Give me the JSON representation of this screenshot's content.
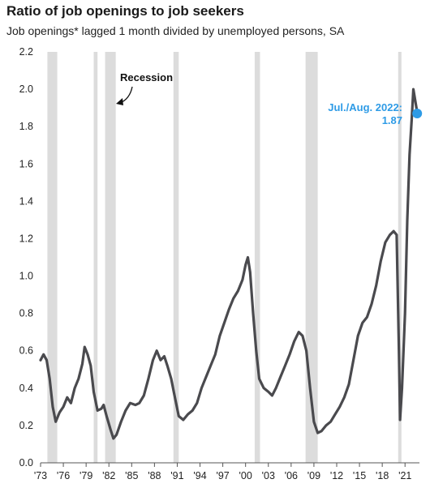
{
  "title": "Ratio of job openings to job seekers",
  "subtitle": "Job openings* lagged 1 month divided by unemployed persons, SA",
  "chart_data": {
    "type": "line",
    "colors": {
      "line": "#4a4a4e",
      "recession": "#dcdcdc",
      "highlight": "#2e9be6"
    },
    "xlim": [
      1973,
      2022.9
    ],
    "ylim": [
      0,
      2.2
    ],
    "y_ticks": [
      "0.0",
      "0.2",
      "0.4",
      "0.6",
      "0.8",
      "1.0",
      "1.2",
      "1.4",
      "1.6",
      "1.8",
      "2.0",
      "2.2"
    ],
    "x_ticks": [
      "'73",
      "'76",
      "'79",
      "'82",
      "'85",
      "'88",
      "'91",
      "'94",
      "'97",
      "'00",
      "'03",
      "'06",
      "'09",
      "'12",
      "'15",
      "'18",
      "'21"
    ],
    "grid": false,
    "recessions": [
      {
        "start": 1973.9,
        "end": 1975.2
      },
      {
        "start": 1980.0,
        "end": 1980.5
      },
      {
        "start": 1981.5,
        "end": 1982.9
      },
      {
        "start": 1990.5,
        "end": 1991.2
      },
      {
        "start": 2001.2,
        "end": 2001.9
      },
      {
        "start": 2007.9,
        "end": 2009.5
      },
      {
        "start": 2020.1,
        "end": 2020.4
      }
    ],
    "recession_label": "Recession",
    "series": [
      {
        "values": [
          [
            1973.0,
            0.55
          ],
          [
            1973.4,
            0.58
          ],
          [
            1973.8,
            0.55
          ],
          [
            1974.2,
            0.45
          ],
          [
            1974.6,
            0.3
          ],
          [
            1975.0,
            0.22
          ],
          [
            1975.5,
            0.27
          ],
          [
            1976.0,
            0.3
          ],
          [
            1976.5,
            0.35
          ],
          [
            1977.0,
            0.32
          ],
          [
            1977.5,
            0.4
          ],
          [
            1978.0,
            0.45
          ],
          [
            1978.5,
            0.53
          ],
          [
            1978.8,
            0.62
          ],
          [
            1979.2,
            0.58
          ],
          [
            1979.6,
            0.52
          ],
          [
            1980.0,
            0.38
          ],
          [
            1980.5,
            0.28
          ],
          [
            1981.0,
            0.29
          ],
          [
            1981.3,
            0.31
          ],
          [
            1981.7,
            0.25
          ],
          [
            1982.2,
            0.18
          ],
          [
            1982.6,
            0.13
          ],
          [
            1983.0,
            0.15
          ],
          [
            1983.6,
            0.22
          ],
          [
            1984.2,
            0.28
          ],
          [
            1984.8,
            0.32
          ],
          [
            1985.5,
            0.31
          ],
          [
            1986.0,
            0.32
          ],
          [
            1986.6,
            0.36
          ],
          [
            1987.2,
            0.45
          ],
          [
            1987.8,
            0.55
          ],
          [
            1988.3,
            0.6
          ],
          [
            1988.8,
            0.55
          ],
          [
            1989.3,
            0.57
          ],
          [
            1989.7,
            0.52
          ],
          [
            1990.2,
            0.45
          ],
          [
            1990.7,
            0.35
          ],
          [
            1991.2,
            0.25
          ],
          [
            1991.8,
            0.23
          ],
          [
            1992.4,
            0.26
          ],
          [
            1993.0,
            0.28
          ],
          [
            1993.6,
            0.32
          ],
          [
            1994.2,
            0.4
          ],
          [
            1994.8,
            0.46
          ],
          [
            1995.4,
            0.52
          ],
          [
            1996.0,
            0.58
          ],
          [
            1996.6,
            0.68
          ],
          [
            1997.2,
            0.75
          ],
          [
            1997.8,
            0.82
          ],
          [
            1998.4,
            0.88
          ],
          [
            1999.0,
            0.92
          ],
          [
            1999.6,
            0.98
          ],
          [
            2000.0,
            1.06
          ],
          [
            2000.3,
            1.1
          ],
          [
            2000.6,
            1.02
          ],
          [
            2001.0,
            0.8
          ],
          [
            2001.4,
            0.6
          ],
          [
            2001.8,
            0.45
          ],
          [
            2002.4,
            0.4
          ],
          [
            2003.0,
            0.38
          ],
          [
            2003.5,
            0.36
          ],
          [
            2004.0,
            0.4
          ],
          [
            2004.6,
            0.46
          ],
          [
            2005.2,
            0.52
          ],
          [
            2005.8,
            0.58
          ],
          [
            2006.4,
            0.65
          ],
          [
            2007.0,
            0.7
          ],
          [
            2007.5,
            0.68
          ],
          [
            2008.0,
            0.6
          ],
          [
            2008.5,
            0.4
          ],
          [
            2009.0,
            0.22
          ],
          [
            2009.5,
            0.16
          ],
          [
            2010.0,
            0.17
          ],
          [
            2010.6,
            0.2
          ],
          [
            2011.2,
            0.22
          ],
          [
            2011.8,
            0.26
          ],
          [
            2012.4,
            0.3
          ],
          [
            2013.0,
            0.35
          ],
          [
            2013.6,
            0.42
          ],
          [
            2014.2,
            0.55
          ],
          [
            2014.8,
            0.68
          ],
          [
            2015.4,
            0.75
          ],
          [
            2016.0,
            0.78
          ],
          [
            2016.6,
            0.85
          ],
          [
            2017.2,
            0.95
          ],
          [
            2017.8,
            1.08
          ],
          [
            2018.4,
            1.18
          ],
          [
            2019.0,
            1.22
          ],
          [
            2019.5,
            1.24
          ],
          [
            2019.9,
            1.22
          ],
          [
            2020.2,
            0.6
          ],
          [
            2020.35,
            0.23
          ],
          [
            2020.6,
            0.4
          ],
          [
            2021.0,
            0.8
          ],
          [
            2021.3,
            1.3
          ],
          [
            2021.6,
            1.65
          ],
          [
            2021.9,
            1.85
          ],
          [
            2022.1,
            2.0
          ],
          [
            2022.3,
            1.95
          ],
          [
            2022.5,
            1.9
          ],
          [
            2022.6,
            1.87
          ]
        ]
      }
    ],
    "annotation": {
      "text_lines": [
        "Jul./Aug. 2022:",
        "1.87"
      ],
      "x": 2022.6,
      "y": 1.87
    }
  }
}
